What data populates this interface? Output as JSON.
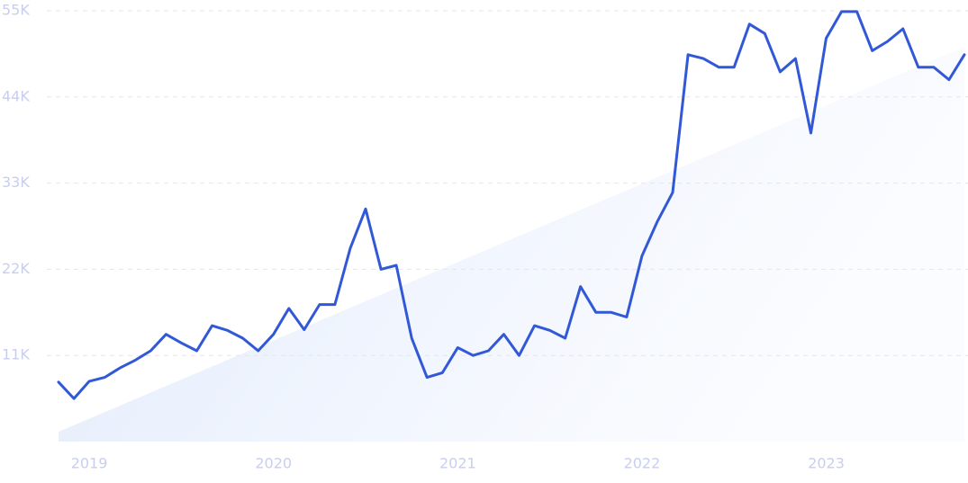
{
  "chart_data": {
    "type": "line",
    "categories": [
      null,
      null,
      "2019",
      null,
      null,
      null,
      null,
      null,
      null,
      null,
      null,
      null,
      null,
      null,
      "2020",
      null,
      null,
      null,
      null,
      null,
      null,
      null,
      null,
      null,
      null,
      null,
      "2021",
      null,
      null,
      null,
      null,
      null,
      null,
      null,
      null,
      null,
      null,
      null,
      "2022",
      null,
      null,
      null,
      null,
      null,
      null,
      null,
      null,
      null,
      null,
      null,
      "2023",
      null,
      null,
      null,
      null,
      null,
      null,
      null,
      null,
      null
    ],
    "values": [
      7600,
      5500,
      7700,
      8200,
      9400,
      10400,
      11600,
      13700,
      12600,
      11600,
      14800,
      14200,
      13200,
      11600,
      13700,
      17000,
      14300,
      17500,
      17500,
      24700,
      29700,
      22000,
      22500,
      13200,
      8200,
      8800,
      12000,
      11000,
      11600,
      13700,
      11000,
      14800,
      14200,
      13200,
      19800,
      16500,
      16500,
      15900,
      23700,
      28100,
      31800,
      49400,
      48900,
      47800,
      47800,
      53300,
      52100,
      47200,
      48900,
      39400,
      51500,
      54900,
      54900,
      49900,
      51100,
      52700,
      47800,
      47800,
      46200,
      49400
    ],
    "color": "#3158d6",
    "ylim": [
      0,
      55000
    ],
    "yticks": [
      {
        "value": 11000,
        "label": "11K"
      },
      {
        "value": 22000,
        "label": "22K"
      },
      {
        "value": 33000,
        "label": "33K"
      },
      {
        "value": 44000,
        "label": "44K"
      },
      {
        "value": 55000,
        "label": "55K"
      }
    ],
    "grid": true
  }
}
